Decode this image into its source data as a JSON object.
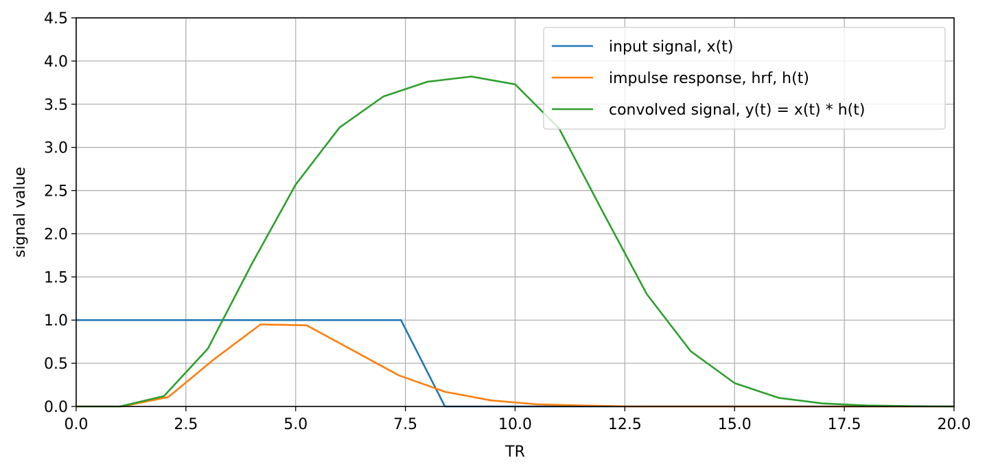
{
  "chart_data": {
    "type": "line",
    "title": "",
    "xlabel": "TR",
    "ylabel": "signal value",
    "xlim": [
      0,
      20
    ],
    "ylim": [
      0,
      4.5
    ],
    "xticks": [
      "0.0",
      "2.5",
      "5.0",
      "7.5",
      "10.0",
      "12.5",
      "15.0",
      "17.5",
      "20.0"
    ],
    "yticks": [
      "0.0",
      "0.5",
      "1.0",
      "1.5",
      "2.0",
      "2.5",
      "3.0",
      "3.5",
      "4.0",
      "4.5"
    ],
    "grid": true,
    "legend_position": "top-right",
    "series": [
      {
        "name": "input signal, x(t)",
        "color": "#1f77b4",
        "x": [
          0,
          7.4,
          8.4,
          20
        ],
        "y": [
          1.0,
          1.0,
          0.0,
          0.0
        ]
      },
      {
        "name": "impulse response, hrf, h(t)",
        "color": "#ff7f0e",
        "x": [
          0,
          1.05,
          2.1,
          3.15,
          4.2,
          5.25,
          6.3,
          7.35,
          8.4,
          9.45,
          10.5,
          11.55,
          12.6,
          13.65,
          14.7,
          15.75,
          16.8,
          17.85,
          18.9,
          20
        ],
        "y": [
          0.0,
          0.0,
          0.11,
          0.55,
          0.95,
          0.94,
          0.65,
          0.36,
          0.17,
          0.07,
          0.025,
          0.01,
          0.0,
          0.0,
          0.0,
          0.0,
          0.0,
          0.0,
          0.0,
          0.0
        ]
      },
      {
        "name": "convolved signal, y(t) = x(t) * h(t)",
        "color": "#2ca02c",
        "x": [
          0,
          1,
          2,
          3,
          4,
          5,
          6,
          7,
          8,
          9,
          10,
          11,
          12,
          13,
          14,
          15,
          16,
          17,
          18,
          19,
          20
        ],
        "y": [
          0.0,
          0.0,
          0.12,
          0.67,
          1.65,
          2.57,
          3.23,
          3.59,
          3.76,
          3.82,
          3.73,
          3.22,
          2.25,
          1.3,
          0.64,
          0.27,
          0.1,
          0.035,
          0.012,
          0.004,
          0.0
        ]
      }
    ]
  }
}
